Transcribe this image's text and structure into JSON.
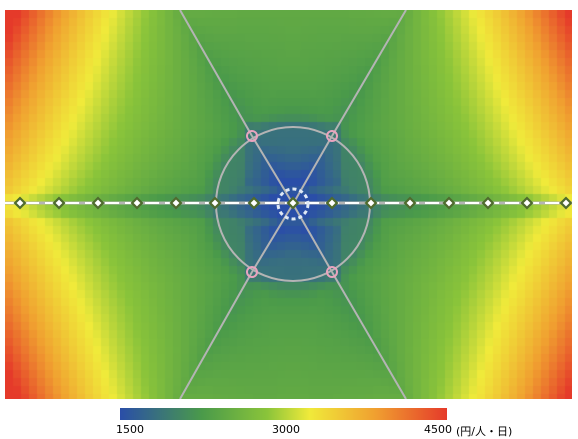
{
  "legend": {
    "min_label": "1500",
    "mid_label": "3000",
    "max_label": "4500",
    "unit": "(円/人・日)",
    "colors": [
      "#2a4ea8",
      "#4a9a4a",
      "#8ac43a",
      "#f0ea3a",
      "#f0a030",
      "#e53a2a"
    ]
  },
  "map": {
    "line_color": "#b4b4b4",
    "route_color": "#ffffff",
    "station_color": "#4f6b2e",
    "circle_node_color": "#e9a4bf"
  }
}
